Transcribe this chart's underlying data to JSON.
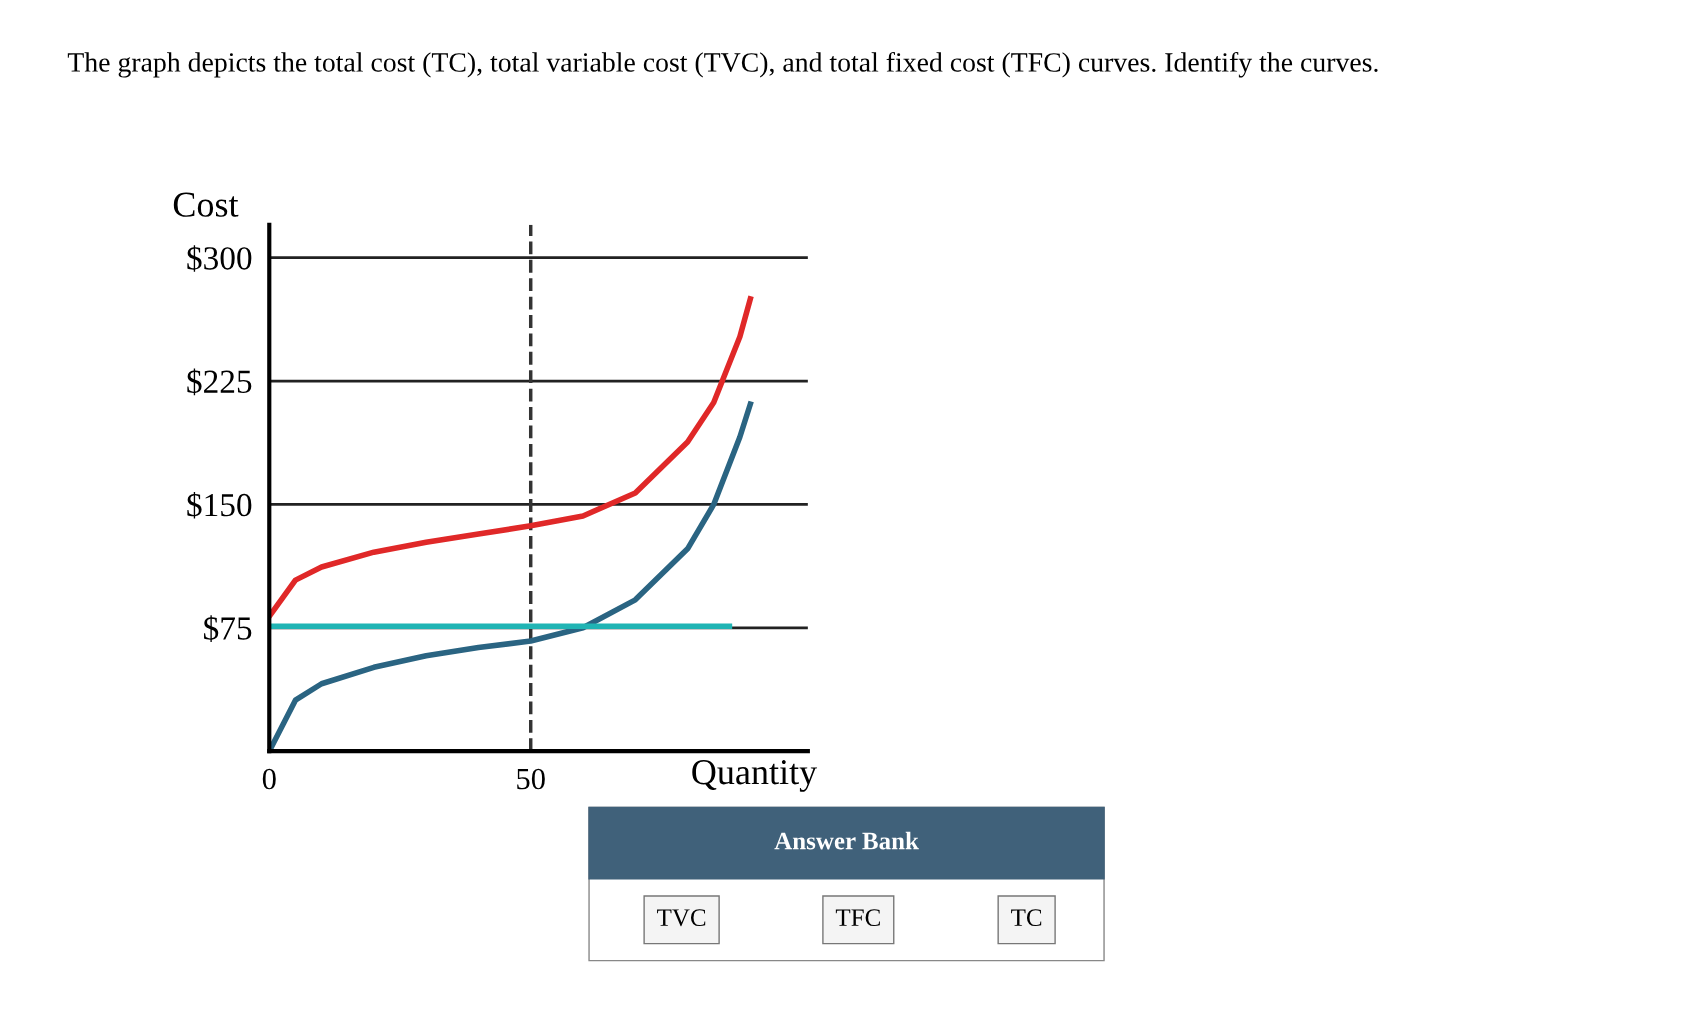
{
  "chart_data": {
    "type": "line",
    "title": "The graph depicts the total cost (TC), total variable cost (TVC), and total fixed cost (TFC) curves. Identify the curves.",
    "ylabel": "Cost",
    "xlabel": "Quantity",
    "xlim": [
      0,
      103
    ],
    "xticks": [
      0,
      50
    ],
    "ylim": [
      0,
      320
    ],
    "yticks": [
      {
        "value": 0,
        "label": null
      },
      {
        "value": 75,
        "label": "$75"
      },
      {
        "value": 150,
        "label": "$150"
      },
      {
        "value": 225,
        "label": "$225"
      },
      {
        "value": 300,
        "label": "$300"
      }
    ],
    "grid": "y",
    "legend": false,
    "marker": "none",
    "line_style": "solid",
    "series": [
      {
        "color": "#e02828",
        "x": [
          0,
          5,
          10,
          20,
          30,
          40,
          50,
          60,
          70,
          80,
          85,
          90,
          92
        ],
        "values": [
          82,
          104,
          112,
          121,
          127,
          132,
          137,
          143,
          157,
          188,
          212,
          252,
          275
        ]
      },
      {
        "color": "#2a6482",
        "x": [
          0,
          5,
          10,
          20,
          30,
          40,
          50,
          60,
          70,
          80,
          85,
          90,
          92
        ],
        "values": [
          0,
          31,
          41,
          51,
          58,
          63,
          67,
          75,
          92,
          123,
          150,
          191,
          211
        ]
      },
      {
        "color": "#20b4b4",
        "x": [
          0,
          88
        ],
        "values": [
          76,
          76
        ]
      }
    ],
    "ref_lines": [
      {
        "axis": "x",
        "value": 50,
        "line_style": "dashed",
        "color": "#333333"
      }
    ],
    "annotations": [
      "Answer Bank",
      "TVC",
      "TFC",
      "TC"
    ]
  }
}
